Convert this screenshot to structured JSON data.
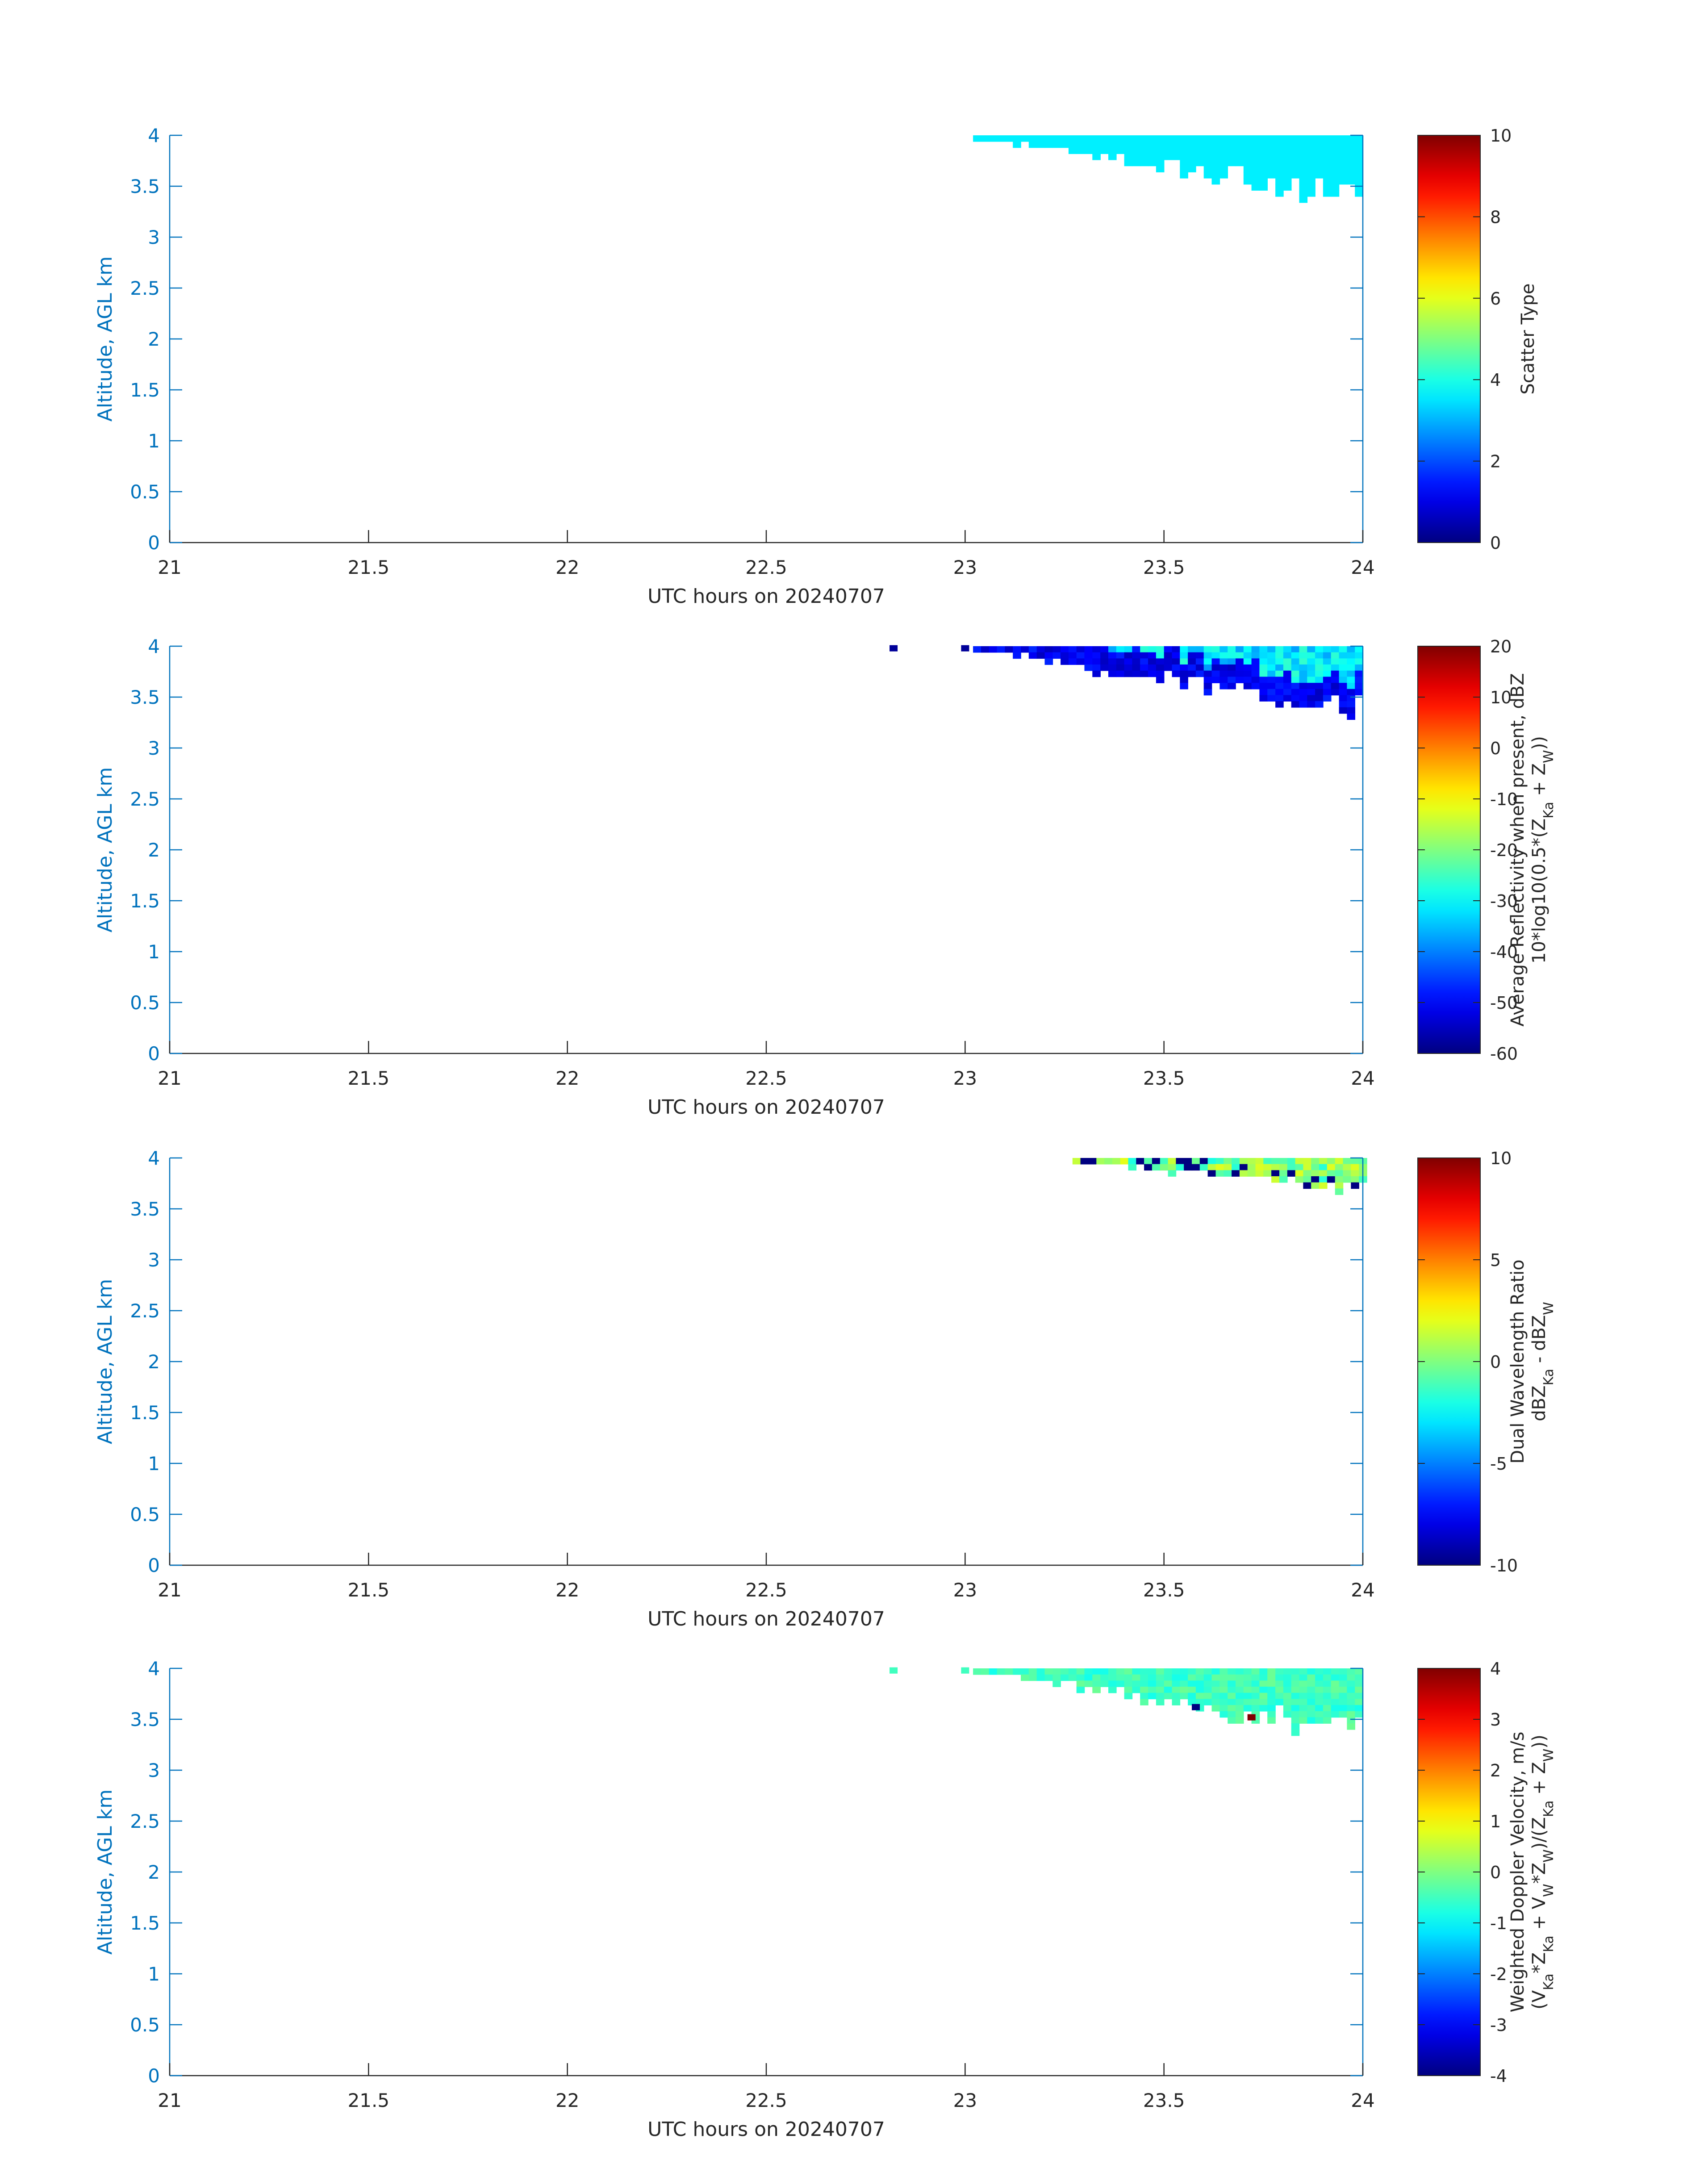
{
  "chart_data": [
    {
      "type": "heatmap",
      "xlabel": "UTC hours on 20240707",
      "ylabel": "Altitude, AGL km",
      "xlim": [
        21,
        24
      ],
      "ylim": [
        0,
        4
      ],
      "xticks": [
        "21",
        "21.5",
        "22",
        "22.5",
        "23",
        "23.5",
        "24"
      ],
      "yticks": [
        "0",
        "0.5",
        "1",
        "1.5",
        "2",
        "2.5",
        "3",
        "3.5",
        "4"
      ],
      "colorbar": {
        "label": [
          "Scatter Type"
        ],
        "clim": [
          0,
          10
        ],
        "ticks": [
          "0",
          "2",
          "4",
          "6",
          "8",
          "10"
        ]
      },
      "echo": {
        "start": 23.02,
        "base_min": 3.2,
        "value": 3.6,
        "variation": 0
      },
      "isolated": []
    },
    {
      "type": "heatmap",
      "xlabel": "UTC hours on 20240707",
      "ylabel": "Altitude, AGL km",
      "xlim": [
        21,
        24
      ],
      "ylim": [
        0,
        4
      ],
      "xticks": [
        "21",
        "21.5",
        "22",
        "22.5",
        "23",
        "23.5",
        "24"
      ],
      "yticks": [
        "0",
        "0.5",
        "1",
        "1.5",
        "2",
        "2.5",
        "3",
        "3.5",
        "4"
      ],
      "colorbar": {
        "label": [
          "Average Reflectivity when present, dBZ",
          "10*log10(0.5*(Z",
          "Ka",
          " + Z",
          "W",
          "))"
        ],
        "clim": [
          -60,
          20
        ],
        "ticks": [
          "-60",
          "-50",
          "-40",
          "-30",
          "-20",
          "-10",
          "0",
          "10",
          "20"
        ]
      },
      "echo": {
        "start": 23.02,
        "base_min": 3.15,
        "value": -32,
        "variation": 6
      },
      "isolated": [
        {
          "x": 22.81,
          "y": 3.98,
          "v": -58
        },
        {
          "x": 22.99,
          "y": 3.98,
          "v": -58
        }
      ]
    },
    {
      "type": "heatmap",
      "xlabel": "UTC hours on 20240707",
      "ylabel": "Altitude, AGL km",
      "xlim": [
        21,
        24
      ],
      "ylim": [
        0,
        4
      ],
      "xticks": [
        "21",
        "21.5",
        "22",
        "22.5",
        "23",
        "23.5",
        "24"
      ],
      "yticks": [
        "0",
        "0.5",
        "1",
        "1.5",
        "2",
        "2.5",
        "3",
        "3.5",
        "4"
      ],
      "colorbar": {
        "label": [
          "Dual Wavelength Ratio",
          "dBZ",
          "Ka",
          " - dBZ",
          "W"
        ],
        "clim": [
          -10,
          10
        ],
        "ticks": [
          "-10",
          "-5",
          "0",
          "5",
          "10"
        ]
      },
      "echo": {
        "start": 23.27,
        "base_min": 3.55,
        "value": 0,
        "variation": 2
      },
      "isolated": []
    },
    {
      "type": "heatmap",
      "xlabel": "UTC hours on 20240707",
      "ylabel": "Altitude, AGL km",
      "xlim": [
        21,
        24
      ],
      "ylim": [
        0,
        4
      ],
      "xticks": [
        "21",
        "21.5",
        "22",
        "22.5",
        "23",
        "23.5",
        "24"
      ],
      "yticks": [
        "0",
        "0.5",
        "1",
        "1.5",
        "2",
        "2.5",
        "3",
        "3.5",
        "4"
      ],
      "colorbar": {
        "label": [
          "Weighted Doppler Velocity, m/s",
          "(V",
          "Ka",
          "*Z",
          "Ka",
          " + V",
          "W",
          "*Z",
          "W",
          ")/(Z",
          "Ka",
          " + Z",
          "W",
          "))"
        ],
        "clim": [
          -4,
          4
        ],
        "ticks": [
          "-4",
          "-3",
          "-2",
          "-1",
          "0",
          "1",
          "2",
          "3",
          "4"
        ]
      },
      "echo": {
        "start": 23.02,
        "base_min": 3.15,
        "value": -0.5,
        "variation": 0.35
      },
      "isolated": [
        {
          "x": 22.81,
          "y": 3.98,
          "v": -0.5
        },
        {
          "x": 22.99,
          "y": 3.98,
          "v": -0.5
        },
        {
          "x": 23.71,
          "y": 3.52,
          "v": 4
        },
        {
          "x": 23.57,
          "y": 3.62,
          "v": -4
        }
      ]
    }
  ]
}
